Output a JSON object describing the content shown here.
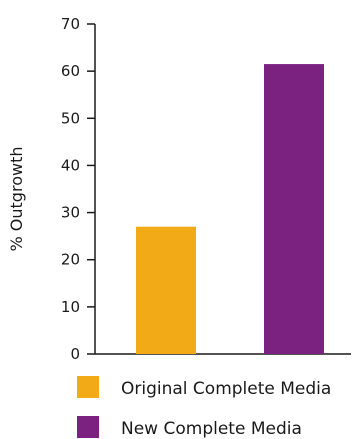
{
  "chart_data": {
    "type": "bar",
    "categories": [
      "Original Complete Media",
      "New Complete Media"
    ],
    "values": [
      27,
      61.5
    ],
    "colors": [
      "#f2ab16",
      "#7b2281"
    ],
    "ylabel": "% Outgrowth",
    "xlabel": "",
    "ylim": [
      0,
      70
    ],
    "yticks": [
      0,
      10,
      20,
      30,
      40,
      50,
      60,
      70
    ],
    "grid": false,
    "legend_position": "bottom",
    "legend": [
      {
        "label": "Original Complete Media",
        "color": "#f2ab16"
      },
      {
        "label": "New Complete Media",
        "color": "#7b2281"
      }
    ]
  }
}
